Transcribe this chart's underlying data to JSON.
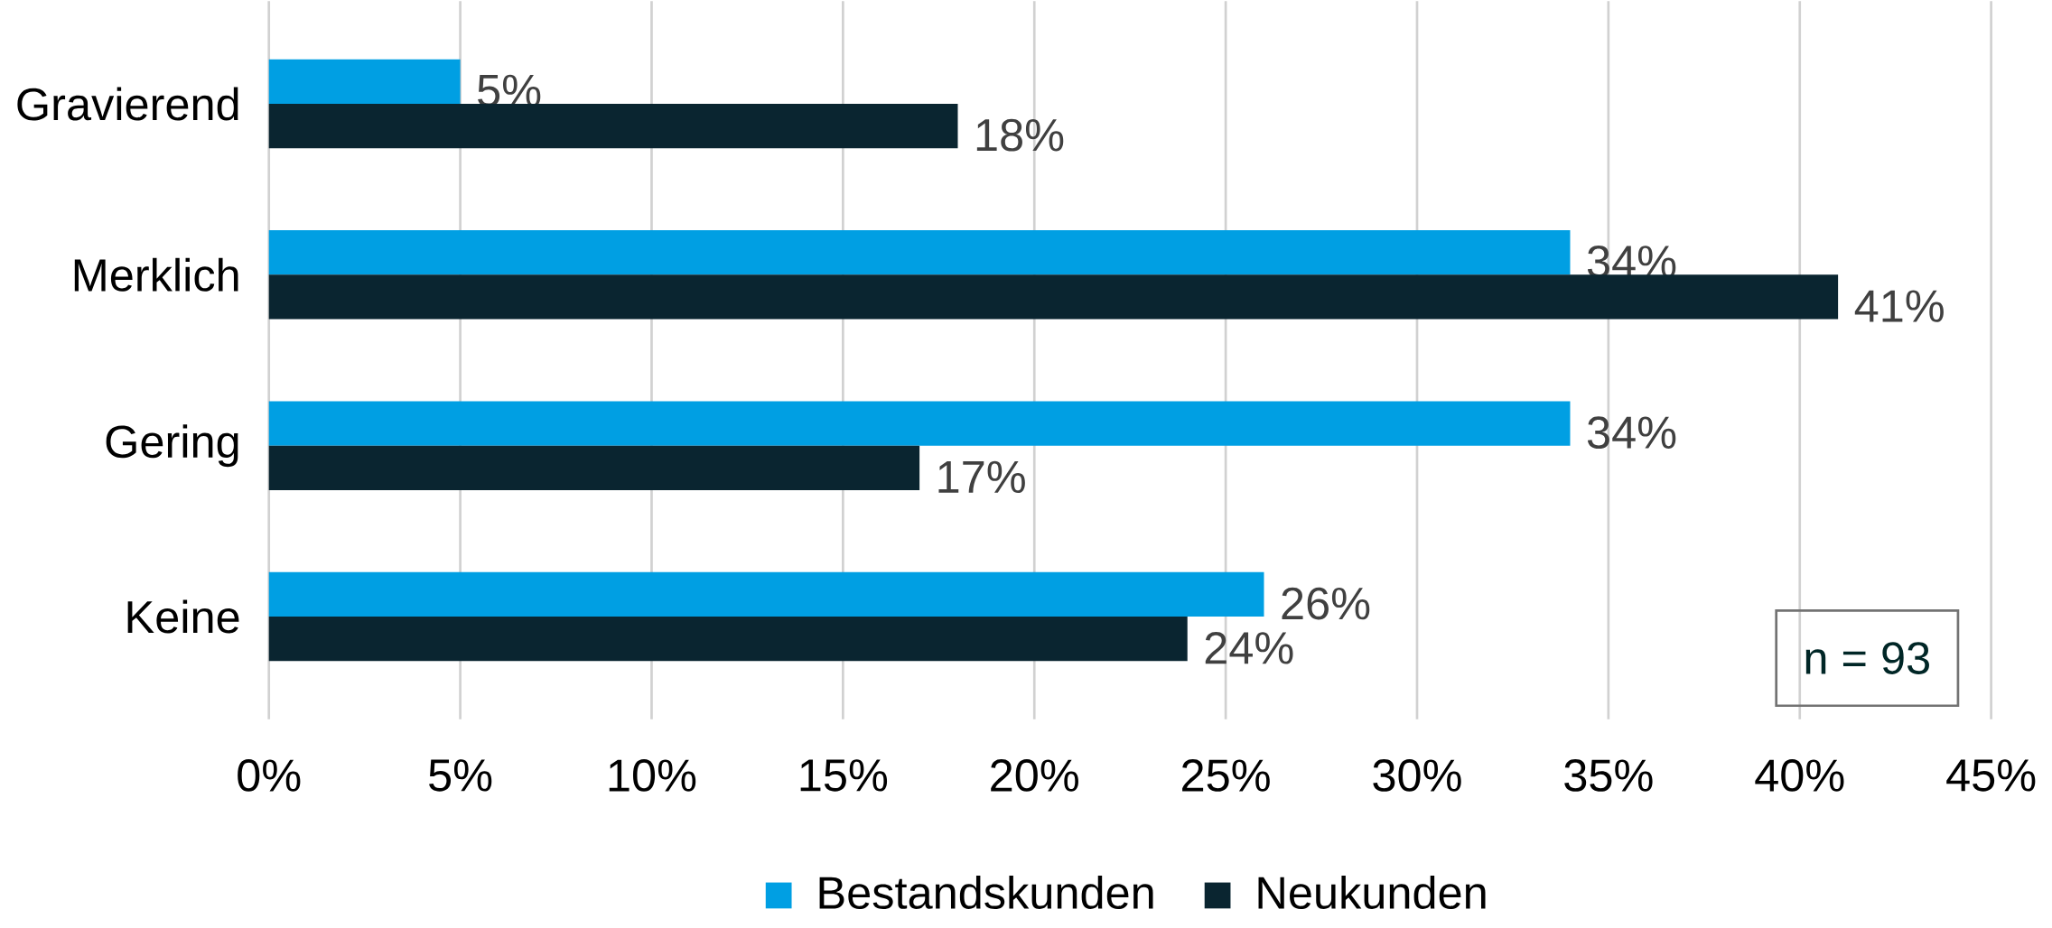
{
  "chart_data": {
    "type": "bar",
    "orientation": "horizontal",
    "categories": [
      "Gravierend",
      "Merklich",
      "Gering",
      "Keine"
    ],
    "series": [
      {
        "name": "Bestandskunden",
        "color": "#009fe3",
        "values": [
          5,
          34,
          34,
          26
        ],
        "value_labels": [
          "5%",
          "34%",
          "34%",
          "26%"
        ]
      },
      {
        "name": "Neukunden",
        "color": "#0a2530",
        "values": [
          18,
          41,
          17,
          24
        ],
        "value_labels": [
          "18%",
          "41%",
          "17%",
          "24%"
        ]
      }
    ],
    "xlim": [
      0,
      45
    ],
    "xticks": [
      {
        "value": 0,
        "label": "0%"
      },
      {
        "value": 5,
        "label": "5%"
      },
      {
        "value": 10,
        "label": "10%"
      },
      {
        "value": 15,
        "label": "15%"
      },
      {
        "value": 20,
        "label": "20%"
      },
      {
        "value": 25,
        "label": "25%"
      },
      {
        "value": 30,
        "label": "30%"
      },
      {
        "value": 35,
        "label": "35%"
      },
      {
        "value": 40,
        "label": "40%"
      },
      {
        "value": 45,
        "label": "45%"
      }
    ],
    "grid": "x",
    "legend": "bottom",
    "annotations": [
      "n = 93"
    ]
  }
}
